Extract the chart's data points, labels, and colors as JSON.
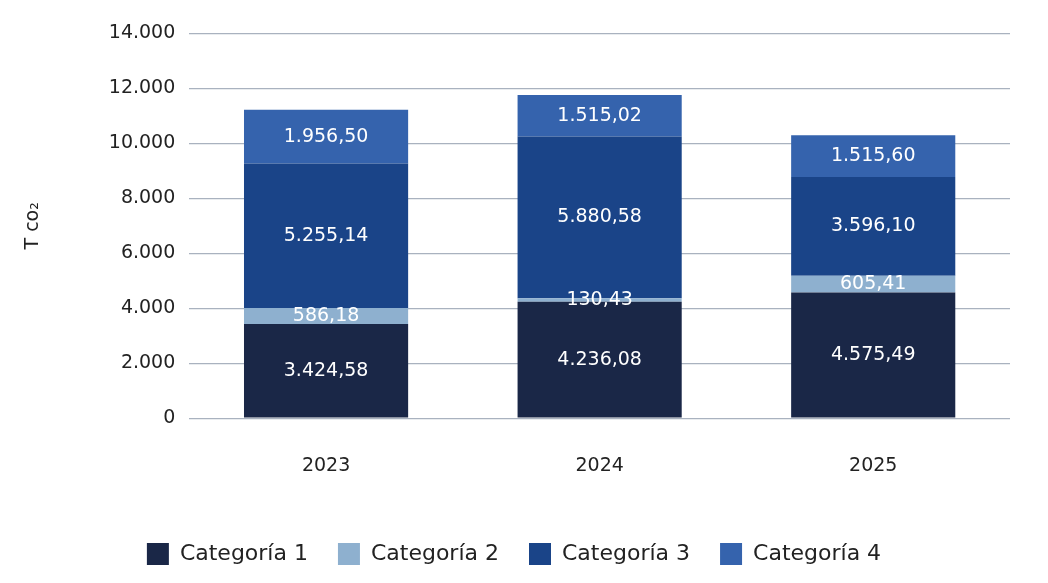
{
  "chart_data": {
    "type": "bar",
    "ylabel": "T co₂",
    "categories": [
      "2023",
      "2024",
      "2025"
    ],
    "stacked": true,
    "grid": "y",
    "legend": "bottom",
    "ylim": [
      0,
      14000
    ],
    "yticks": [
      {
        "value": 0,
        "label": "0"
      },
      {
        "value": 2000,
        "label": "2.000"
      },
      {
        "value": 4000,
        "label": "4.000"
      },
      {
        "value": 6000,
        "label": "6.000"
      },
      {
        "value": 8000,
        "label": "8.000"
      },
      {
        "value": 10000,
        "label": "10.000"
      },
      {
        "value": 12000,
        "label": "12.000"
      },
      {
        "value": 14000,
        "label": "14.000"
      }
    ],
    "series": [
      {
        "name": "Categoría 1",
        "color": "#1a2747",
        "values": [
          3424.58,
          4236.08,
          4575.49
        ],
        "value_labels": [
          "3.424,58",
          "4.236,08",
          "4.575,49"
        ]
      },
      {
        "name": "Categoría 2",
        "color": "#8eb0cf",
        "values": [
          586.18,
          130.43,
          605.41
        ],
        "value_labels": [
          "586,18",
          "130,43",
          "605,41"
        ]
      },
      {
        "name": "Categoría 3",
        "color": "#1a4488",
        "values": [
          5255.14,
          5880.58,
          3596.1
        ],
        "value_labels": [
          "5.255,14",
          "5.880,58",
          "3.596,10"
        ]
      },
      {
        "name": "Categoría 4",
        "color": "#3563ad",
        "values": [
          1956.5,
          1515.02,
          1515.6
        ],
        "value_labels": [
          "1.956,50",
          "1.515,02",
          "1.515,60"
        ]
      }
    ]
  }
}
